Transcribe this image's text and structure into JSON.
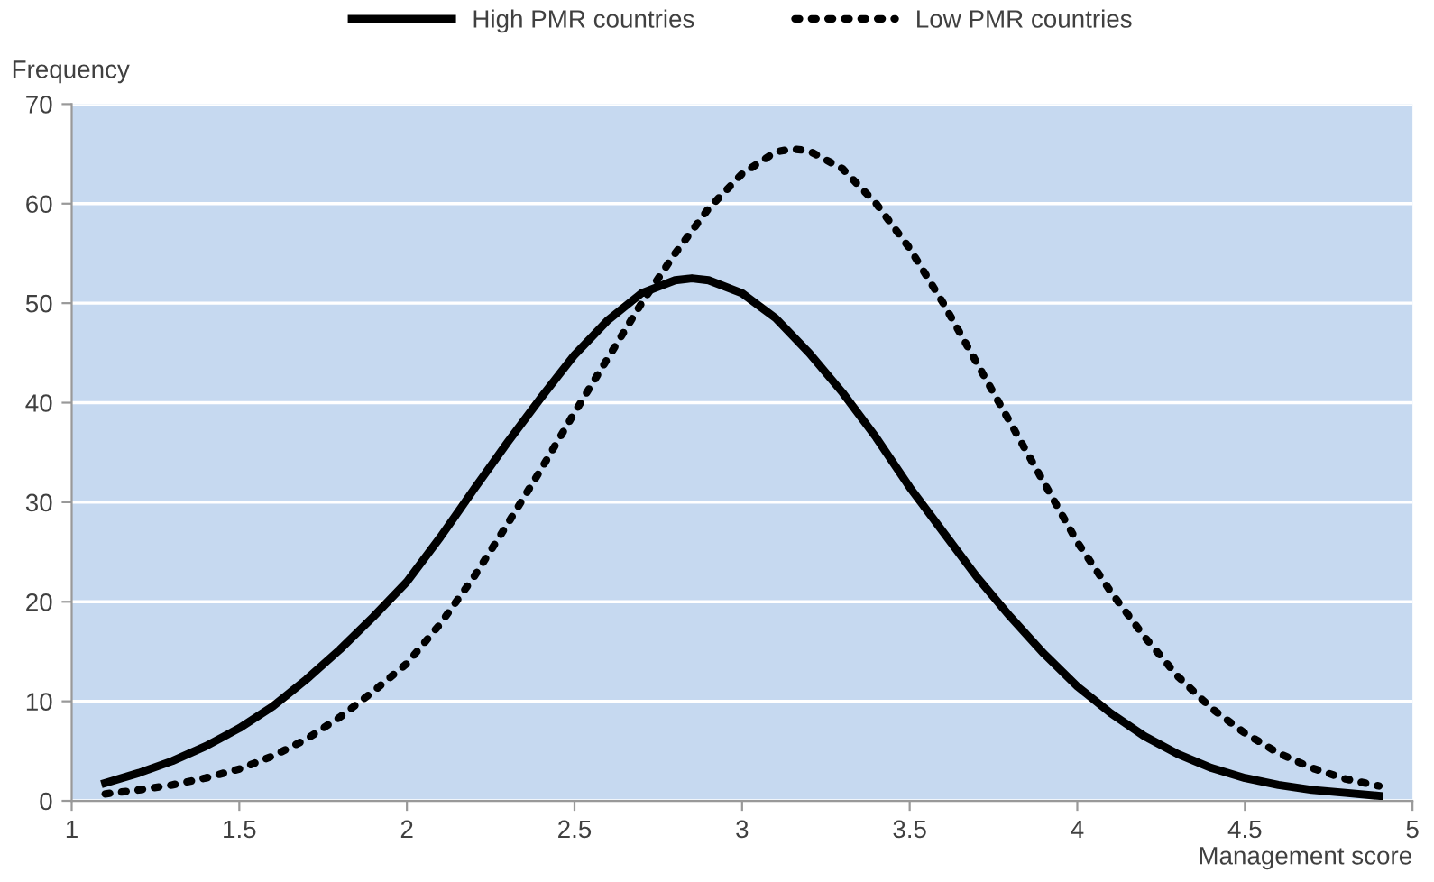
{
  "chart_data": {
    "type": "line",
    "xlabel": "Management score",
    "ylabel": "Frequency",
    "xlim": [
      1,
      5
    ],
    "xticks": [
      1,
      1.5,
      2,
      2.5,
      3,
      3.5,
      4,
      4.5,
      5
    ],
    "ylim": [
      0,
      70
    ],
    "yticks": [
      0,
      10,
      20,
      30,
      40,
      50,
      60,
      70
    ],
    "grid": "y",
    "legend": "top",
    "marker": "none",
    "series": [
      {
        "name": "High PMR countries",
        "color": "#000000",
        "line_style": "solid",
        "x": [
          1.1,
          1.2,
          1.3,
          1.4,
          1.5,
          1.6,
          1.7,
          1.8,
          1.9,
          2.0,
          2.1,
          2.2,
          2.3,
          2.4,
          2.5,
          2.6,
          2.7,
          2.8,
          2.85,
          2.9,
          3.0,
          3.1,
          3.2,
          3.3,
          3.4,
          3.5,
          3.6,
          3.7,
          3.8,
          3.9,
          4.0,
          4.1,
          4.2,
          4.3,
          4.4,
          4.5,
          4.6,
          4.7,
          4.8,
          4.9
        ],
        "values": [
          1.8,
          2.8,
          4,
          5.5,
          7.3,
          9.5,
          12.2,
          15.2,
          18.5,
          22,
          26.5,
          31.3,
          36,
          40.5,
          44.8,
          48.3,
          51,
          52.3,
          52.5,
          52.3,
          51,
          48.5,
          45,
          41,
          36.5,
          31.5,
          27,
          22.5,
          18.5,
          14.8,
          11.5,
          8.8,
          6.5,
          4.7,
          3.3,
          2.3,
          1.6,
          1.1,
          0.8,
          0.5
        ]
      },
      {
        "name": "Low PMR countries",
        "color": "#000000",
        "line_style": "dotted",
        "x": [
          1.1,
          1.2,
          1.3,
          1.4,
          1.5,
          1.6,
          1.7,
          1.8,
          1.9,
          2.0,
          2.1,
          2.2,
          2.3,
          2.4,
          2.5,
          2.6,
          2.7,
          2.8,
          2.9,
          3.0,
          3.1,
          3.15,
          3.2,
          3.3,
          3.4,
          3.5,
          3.6,
          3.7,
          3.8,
          3.9,
          4.0,
          4.1,
          4.2,
          4.3,
          4.4,
          4.5,
          4.6,
          4.7,
          4.8,
          4.9
        ],
        "values": [
          0.7,
          1.1,
          1.6,
          2.3,
          3.2,
          4.5,
          6.2,
          8.4,
          11,
          13.8,
          17.8,
          22.5,
          27.8,
          33.3,
          39,
          44.5,
          50,
          55,
          59.5,
          63,
          65.2,
          65.5,
          65.3,
          63.5,
          60,
          55.5,
          50,
          44,
          38,
          32,
          26,
          21,
          16.5,
          12.5,
          9.3,
          6.8,
          4.8,
          3.3,
          2.2,
          1.5
        ]
      }
    ]
  }
}
